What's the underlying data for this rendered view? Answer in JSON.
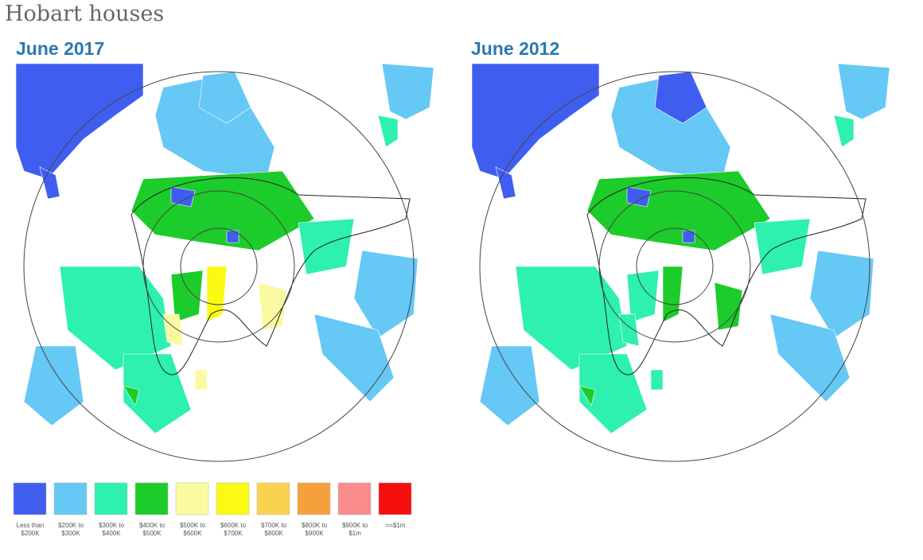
{
  "title": "Hobart houses",
  "panels": [
    {
      "title": "June 2017"
    },
    {
      "title": "June 2012"
    }
  ],
  "legend": {
    "items": [
      {
        "label": "Less than $200K",
        "color": "#3f5ef0"
      },
      {
        "label": "$200K to $300K",
        "color": "#66c8f5"
      },
      {
        "label": "$300K to $400K",
        "color": "#2ef0b0"
      },
      {
        "label": "$400K to $500K",
        "color": "#1ccc2a"
      },
      {
        "label": "$500K to $600K",
        "color": "#fafaa0"
      },
      {
        "label": "$600K to $700K",
        "color": "#fafa14"
      },
      {
        "label": "$700K to $800K",
        "color": "#fad250"
      },
      {
        "label": "$800K to $900K",
        "color": "#f5a03c"
      },
      {
        "label": "$900K to $1m",
        "color": "#fa8c8c"
      },
      {
        "label": ">=$1m",
        "color": "#f50f0f"
      }
    ]
  }
}
